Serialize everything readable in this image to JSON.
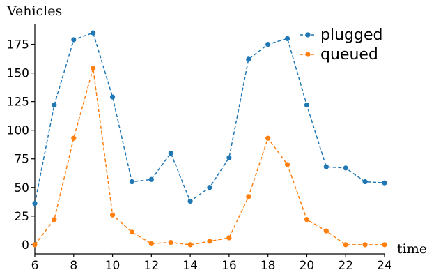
{
  "chart_data": {
    "type": "line",
    "title": "",
    "xlabel": "time",
    "ylabel": "Vehicles",
    "xlim": [
      6,
      24
    ],
    "ylim": [
      -8,
      193
    ],
    "x_ticks": [
      6,
      8,
      10,
      12,
      14,
      16,
      18,
      20,
      22,
      24
    ],
    "y_ticks": [
      0,
      25,
      50,
      75,
      100,
      125,
      150,
      175
    ],
    "grid": false,
    "legend_position": "top-right",
    "x": [
      6,
      7,
      8,
      9,
      10,
      11,
      12,
      13,
      14,
      15,
      16,
      17,
      18,
      19,
      20,
      21,
      22,
      23,
      24
    ],
    "series": [
      {
        "name": "plugged",
        "color": "#1f77b4",
        "line_style": "dashed",
        "marker": "circle",
        "values": [
          36,
          122,
          179,
          185,
          129,
          55,
          57,
          80,
          38,
          50,
          76,
          162,
          175,
          180,
          122,
          68,
          67,
          55,
          54
        ]
      },
      {
        "name": "queued",
        "color": "#ff7f0e",
        "line_style": "dashed",
        "marker": "circle",
        "values": [
          0,
          22,
          93,
          154,
          26,
          11,
          1,
          2,
          0,
          3,
          6,
          42,
          93,
          70,
          22,
          12,
          0,
          0,
          0
        ]
      }
    ]
  }
}
